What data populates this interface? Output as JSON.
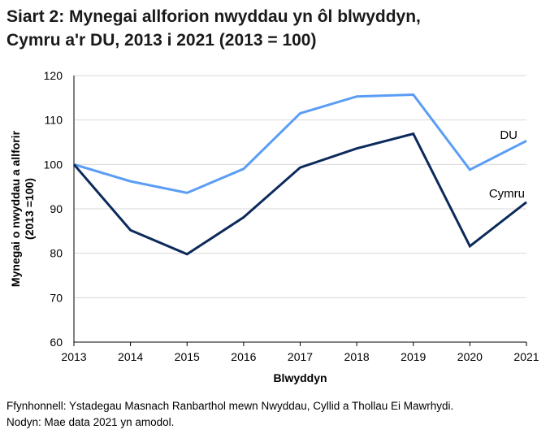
{
  "chart_data": {
    "type": "line",
    "title_line1": "Siart 2: Mynegai allforion nwyddau yn ôl blwyddyn,",
    "title_line2": "Cymru a'r DU, 2013 i 2021 (2013 = 100)",
    "xlabel": "Blwyddyn",
    "ylabel_line1": "Mynegai o nwyddau a allforir",
    "ylabel_line2": "(2013 =100)",
    "x": [
      "2013",
      "2014",
      "2015",
      "2016",
      "2017",
      "2018",
      "2019",
      "2020",
      "2021"
    ],
    "ylim": [
      60,
      120
    ],
    "yticks": [
      60,
      70,
      80,
      90,
      100,
      110,
      120
    ],
    "grid": true,
    "legend": "inline labels at line ends",
    "series": [
      {
        "name": "DU",
        "color": "#5b9df5",
        "values": [
          100,
          96.2,
          93.6,
          99.0,
          111.5,
          115.3,
          115.7,
          98.8,
          105.3
        ]
      },
      {
        "name": "Cymru",
        "color": "#0c2a5c",
        "values": [
          100,
          85.2,
          79.8,
          88.1,
          99.3,
          103.6,
          106.9,
          81.6,
          91.5
        ]
      }
    ]
  },
  "footer": {
    "source": "Ffynhonnell: Ystadegau Masnach Ranbarthol mewn Nwyddau, Cyllid a Thollau Ei Mawrhydi.",
    "note": "Nodyn: Mae data 2021 yn amodol."
  }
}
